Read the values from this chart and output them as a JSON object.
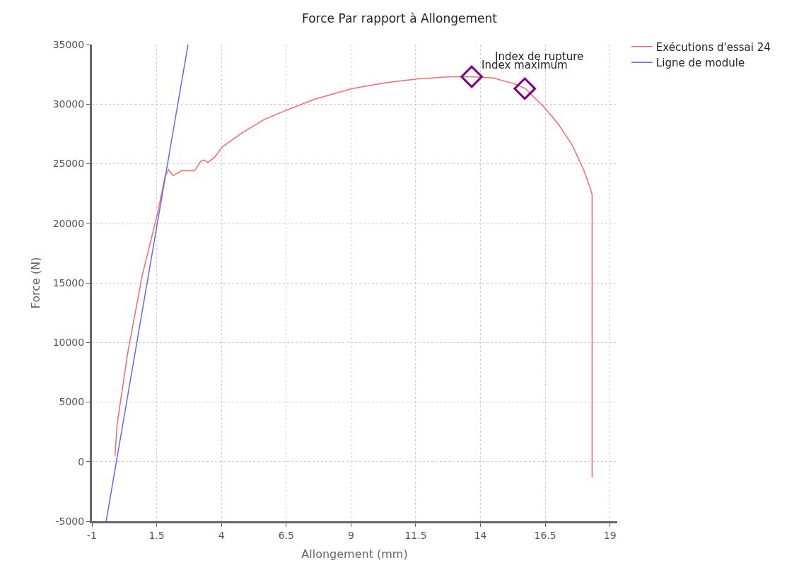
{
  "chart_data": {
    "type": "line",
    "title": "Force Par rapport à Allongement",
    "xlabel": "Allongement (mm)",
    "ylabel": "Force (N)",
    "xlim": [
      -1,
      19.28
    ],
    "xticks": [
      -1,
      1.5,
      4,
      6.5,
      9,
      11.5,
      14,
      16.5,
      19
    ],
    "ylim": [
      -5000,
      35000
    ],
    "yticks": [
      -5000,
      0,
      5000,
      10000,
      15000,
      20000,
      25000,
      30000,
      35000
    ],
    "grid": true,
    "legend": "top right",
    "marker": "none",
    "line_style": "solid",
    "series": [
      {
        "name": "Exécutions d'essai 24",
        "color": "#ff6666",
        "x": [
          -0.11,
          -0.03,
          0.38,
          0.94,
          1.54,
          1.82,
          1.96,
          2.13,
          2.46,
          2.96,
          3.2,
          3.34,
          3.48,
          3.76,
          4.03,
          4.81,
          5.64,
          6.52,
          7.58,
          9.04,
          10.34,
          11.53,
          12.83,
          13.66,
          14.49,
          15.32,
          15.74,
          16.43,
          16.98,
          17.53,
          17.98,
          18.23,
          18.31,
          18.31
        ],
        "values": [
          500,
          3100,
          9100,
          15600,
          20900,
          23900,
          24500,
          24000,
          24400,
          24400,
          25200,
          25300,
          25100,
          25600,
          26400,
          27600,
          28700,
          29500,
          30400,
          31300,
          31800,
          32100,
          32300,
          32300,
          32200,
          31700,
          31300,
          29800,
          28400,
          26600,
          24500,
          23000,
          22400,
          -1300
        ]
      },
      {
        "name": "Ligne de module",
        "color": "#6666ff",
        "x": [
          -0.45,
          2.71
        ],
        "values": [
          -5000,
          35000
        ]
      },
      {
        "type": "scatter",
        "marker": "diamond",
        "color": "#800080",
        "x": [
          13.66,
          15.71
        ],
        "values": [
          32300,
          31300
        ]
      }
    ],
    "annotations": [
      {
        "text": "Index maximum",
        "x": 13.66,
        "y": 32300
      },
      {
        "text": "Index de rupture",
        "x": 15.71,
        "y": 31300
      }
    ]
  }
}
